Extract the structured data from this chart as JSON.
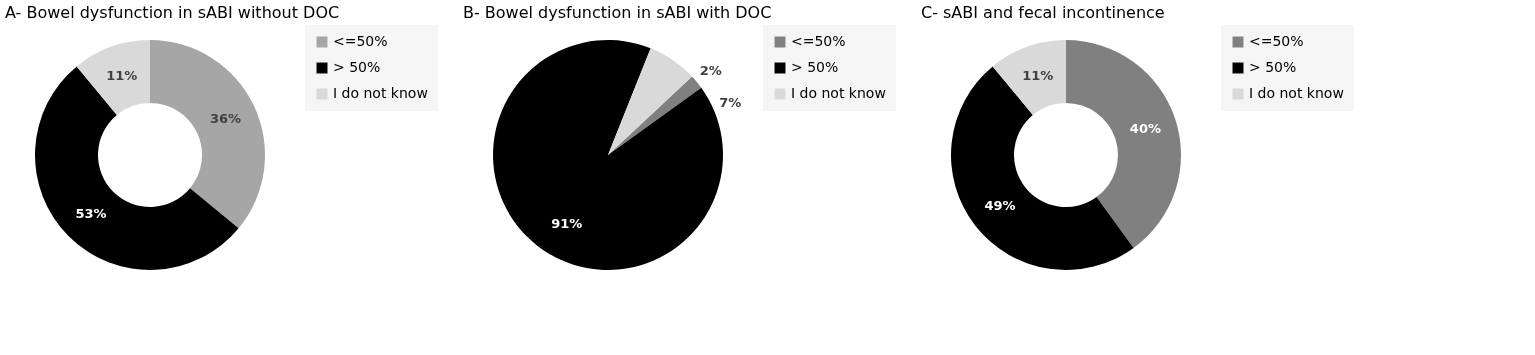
{
  "chart_data": [
    {
      "type": "donut",
      "title": "A-   Bowel dysfunction in sABI  without DOC",
      "categories": [
        "<=50%",
        "> 50%",
        "I do not know"
      ],
      "values": [
        36,
        53,
        11
      ],
      "colors": [
        "#a6a6a6",
        "#000000",
        "#d9d9d9"
      ],
      "value_labels": [
        "36%",
        "53%",
        "11%"
      ],
      "legend": "right"
    },
    {
      "type": "pie",
      "title": "B-   Bowel dysfunction in sABI with DOC",
      "categories": [
        "<=50%",
        "> 50%",
        "I do not know"
      ],
      "values": [
        2,
        91,
        7
      ],
      "colors": [
        "#808080",
        "#000000",
        "#d9d9d9"
      ],
      "value_labels": [
        "2%",
        "91%",
        "7%"
      ],
      "legend": "right"
    },
    {
      "type": "donut",
      "title": "C-   sABI and fecal incontinence",
      "categories": [
        "<=50%",
        "> 50%",
        "I do not know"
      ],
      "values": [
        40,
        49,
        11
      ],
      "colors": [
        "#808080",
        "#000000",
        "#d9d9d9"
      ],
      "value_labels": [
        "40%",
        "49%",
        "11%"
      ],
      "legend": "right"
    }
  ]
}
